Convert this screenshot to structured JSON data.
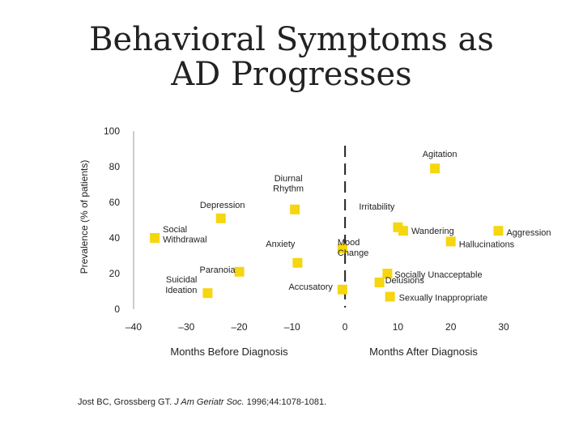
{
  "title": "Behavioral Symptoms as\nAD Progresses",
  "chart_data": {
    "type": "scatter",
    "ylabel": "Prevalence (% of patients)",
    "ylim": [
      0,
      100
    ],
    "yticks": [
      0,
      20,
      40,
      60,
      80,
      100
    ],
    "xticks": [
      "–40",
      "–30",
      "–20",
      "–10",
      "0",
      "10",
      "20",
      "30"
    ],
    "xtick_values": [
      -40,
      -30,
      -20,
      -10,
      0,
      10,
      20,
      30
    ],
    "xlim": [
      -40,
      30
    ],
    "xlabel_before": "Months Before Diagnosis",
    "xlabel_after": "Months After Diagnosis",
    "diagnosis_line_x": 0,
    "marker_color": "#f5d60f",
    "points": [
      {
        "label": "Agitation",
        "x": 17,
        "y": 79
      },
      {
        "label": "Depression",
        "x": -23.5,
        "y": 51
      },
      {
        "label": "Diurnal\nRhythm",
        "x": -9.5,
        "y": 56
      },
      {
        "label": "Irritability",
        "x": 10,
        "y": 46
      },
      {
        "label": "Social\nWithdrawal",
        "x": -36,
        "y": 40
      },
      {
        "label": "Wandering",
        "x": 11,
        "y": 44
      },
      {
        "label": "Aggression",
        "x": 29,
        "y": 44
      },
      {
        "label": "Anxiety",
        "x": -9,
        "y": 26
      },
      {
        "label": "Mood\nChange",
        "x": -0.5,
        "y": 34
      },
      {
        "label": "Paranoia",
        "x": -20,
        "y": 21
      },
      {
        "label": "Hallucinations",
        "x": 20,
        "y": 38
      },
      {
        "label": "Socially Unacceptable",
        "x": 8,
        "y": 20
      },
      {
        "label": "Delusions",
        "x": 6.5,
        "y": 15
      },
      {
        "label": "Suicidal\nIdeation",
        "x": -26,
        "y": 9
      },
      {
        "label": "Accusatory",
        "x": -0.5,
        "y": 11
      },
      {
        "label": "Sexually Inappropriate",
        "x": 8.5,
        "y": 7
      }
    ]
  },
  "citation": {
    "authors": "Jost BC, Grossberg GT.",
    "journal": "J Am Geriatr Soc.",
    "details": "1996;44:1078-1081."
  }
}
